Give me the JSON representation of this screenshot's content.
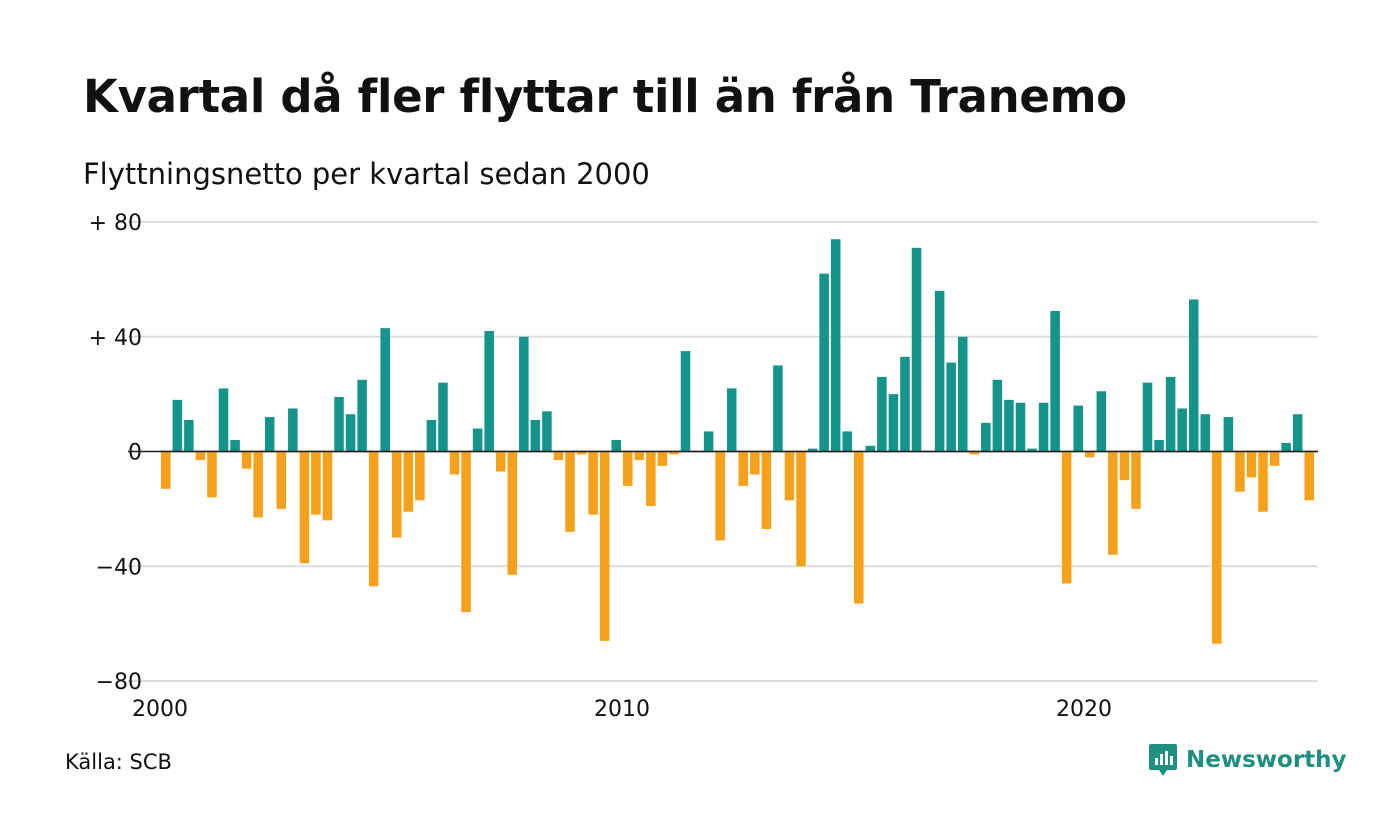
{
  "header": {
    "title": "Kvartal då fler flyttar till än från Tranemo",
    "subtitle": "Flyttningsnetto per kvartal sedan 2000"
  },
  "footer": {
    "source": "Källa: SCB",
    "brand": "Newsworthy"
  },
  "colors": {
    "positive": "#15958a",
    "negative": "#f5a11b",
    "grid": "#dddddd",
    "brand": "#1f8f7f"
  },
  "icons": {
    "brand_logo": "newsworthy-chart-bubble-icon"
  },
  "chart_data": {
    "type": "bar",
    "ylim": [
      -80,
      80
    ],
    "yticks": [
      80,
      40,
      0,
      -40,
      -80
    ],
    "ytick_labels": [
      "+ 80",
      "+ 40",
      "0",
      "−40",
      "−80"
    ],
    "xtick_labels": [
      "2000",
      "2010",
      "2020"
    ],
    "xtick_years": [
      2000,
      2010,
      2020
    ],
    "start_year": 2000,
    "periods_per_year": 4,
    "grid": true,
    "values": [
      -13,
      18,
      11,
      -3,
      -16,
      22,
      4,
      -6,
      -23,
      12,
      -20,
      15,
      -39,
      -22,
      -24,
      19,
      13,
      25,
      -47,
      43,
      -30,
      -21,
      -17,
      11,
      24,
      -8,
      -56,
      8,
      42,
      -7,
      -43,
      40,
      11,
      14,
      -3,
      -28,
      -1,
      -22,
      -66,
      4,
      -12,
      -3,
      -19,
      -5,
      -1,
      35,
      0,
      7,
      -31,
      22,
      -12,
      -8,
      -27,
      30,
      -17,
      -40,
      1,
      62,
      74,
      7,
      -53,
      2,
      26,
      20,
      33,
      71,
      0,
      56,
      31,
      40,
      -1,
      10,
      25,
      18,
      17,
      1,
      17,
      49,
      -46,
      16,
      -2,
      21,
      -36,
      -10,
      -20,
      24,
      4,
      26,
      15,
      53,
      13,
      -67,
      12,
      -14,
      -9,
      -21,
      -5,
      3,
      13,
      -17
    ]
  }
}
